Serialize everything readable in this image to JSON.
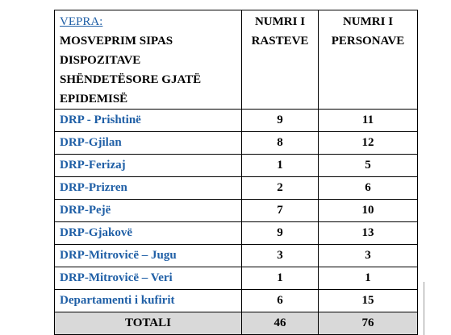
{
  "header": {
    "label": "VEPRA:",
    "title": "MOSVEPRIM SIPAS DISPOZITAVE SHËNDETËSORE GJATË EPIDEMISË",
    "col1": "NUMRI I RASTEVE",
    "col2": "NUMRI I PERSONAVE"
  },
  "rows": [
    {
      "name": "DRP - Prishtinë",
      "cases": 9,
      "persons": 11
    },
    {
      "name": "DRP-Gjilan",
      "cases": 8,
      "persons": 12
    },
    {
      "name": "DRP-Ferizaj",
      "cases": 1,
      "persons": 5
    },
    {
      "name": "DRP-Prizren",
      "cases": 2,
      "persons": 6
    },
    {
      "name": "DRP-Pejë",
      "cases": 7,
      "persons": 10
    },
    {
      "name": "DRP-Gjakovë",
      "cases": 9,
      "persons": 13
    },
    {
      "name": "DRP-Mitrovicë – Jugu",
      "cases": 3,
      "persons": 3
    },
    {
      "name": "DRP-Mitrovicë – Veri",
      "cases": 1,
      "persons": 1
    },
    {
      "name": "Departamenti i kufirit",
      "cases": 6,
      "persons": 15
    }
  ],
  "total": {
    "label": "TOTALI",
    "cases": 46,
    "persons": 76
  }
}
